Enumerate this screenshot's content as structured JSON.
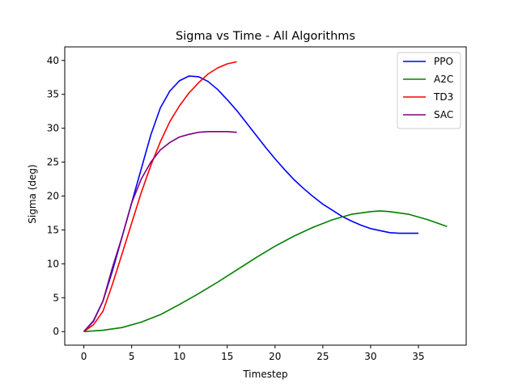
{
  "chart_data": {
    "type": "line",
    "title": "Sigma vs Time - All Algorithms",
    "xlabel": "Timestep",
    "ylabel": "Sigma (deg)",
    "xlim": [
      -2,
      40
    ],
    "ylim": [
      -2,
      42
    ],
    "xticks": [
      0,
      5,
      10,
      15,
      20,
      25,
      30,
      35
    ],
    "yticks": [
      0,
      5,
      10,
      15,
      20,
      25,
      30,
      35,
      40
    ],
    "grid": false,
    "legend_position": "top-right",
    "series": [
      {
        "name": "PPO",
        "color": "#0000ff",
        "x": [
          0,
          1,
          2,
          3,
          4,
          5,
          6,
          7,
          8,
          9,
          10,
          11,
          12,
          13,
          14,
          15,
          16,
          17,
          18,
          19,
          20,
          21,
          22,
          23,
          24,
          25,
          26,
          27,
          28,
          29,
          30,
          31,
          32,
          33,
          34,
          35
        ],
        "y": [
          0,
          1.5,
          4.5,
          9,
          14,
          19,
          24,
          29,
          33,
          35.5,
          37,
          37.7,
          37.6,
          36.9,
          35.7,
          34.2,
          32.6,
          30.8,
          29,
          27.2,
          25.5,
          23.9,
          22.4,
          21.1,
          19.9,
          18.8,
          17.9,
          17,
          16.3,
          15.7,
          15.2,
          14.9,
          14.6,
          14.5,
          14.5,
          14.5
        ]
      },
      {
        "name": "A2C",
        "color": "#008000",
        "x": [
          0,
          2,
          4,
          6,
          8,
          10,
          12,
          14,
          16,
          18,
          20,
          22,
          24,
          26,
          28,
          30,
          31,
          32,
          34,
          36,
          38
        ],
        "y": [
          0,
          0.2,
          0.6,
          1.4,
          2.5,
          4,
          5.6,
          7.3,
          9.1,
          10.9,
          12.6,
          14.1,
          15.4,
          16.5,
          17.3,
          17.7,
          17.8,
          17.7,
          17.3,
          16.5,
          15.5
        ]
      },
      {
        "name": "TD3",
        "color": "#ff0000",
        "x": [
          0,
          1,
          2,
          3,
          4,
          5,
          6,
          7,
          8,
          9,
          10,
          11,
          12,
          13,
          14,
          15,
          16
        ],
        "y": [
          0,
          1,
          3,
          7,
          11.5,
          16,
          20.5,
          24.5,
          28,
          31,
          33.3,
          35.2,
          36.7,
          38,
          38.9,
          39.5,
          39.8
        ]
      },
      {
        "name": "SAC",
        "color": "#800080",
        "x": [
          0,
          1,
          2,
          3,
          4,
          5,
          6,
          7,
          8,
          9,
          10,
          11,
          12,
          13,
          14,
          15,
          16
        ],
        "y": [
          0,
          1.6,
          4.5,
          9.5,
          14,
          19,
          22.5,
          25,
          26.8,
          27.9,
          28.7,
          29.1,
          29.4,
          29.5,
          29.5,
          29.5,
          29.4
        ]
      }
    ]
  }
}
